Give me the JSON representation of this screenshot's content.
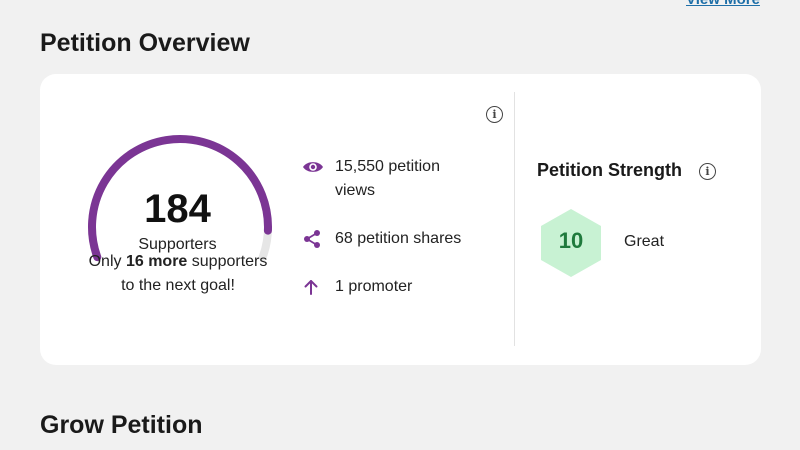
{
  "header": {
    "view_more_label": "View More"
  },
  "overview": {
    "title": "Petition Overview",
    "supporters": {
      "count": "184",
      "label": "Supporters",
      "goal_prefix": "Only ",
      "goal_bold": "16 more",
      "goal_suffix": " supporters to the next goal!",
      "progress_fraction": 0.92
    },
    "stats": [
      {
        "icon": "eye-icon",
        "text": "15,550 petition views"
      },
      {
        "icon": "share-icon",
        "text": "68 petition shares"
      },
      {
        "icon": "arrow-up-icon",
        "text": "1 promoter"
      }
    ],
    "strength": {
      "title": "Petition Strength",
      "score": "10",
      "rating": "Great"
    }
  },
  "grow": {
    "title": "Grow Petition"
  },
  "colors": {
    "accent_purple": "#7b3594",
    "gauge_track": "#e6e6e6",
    "hex_fill": "#c8f2d3",
    "score_green": "#1f7a3c",
    "link_blue": "#1e6fa8"
  }
}
